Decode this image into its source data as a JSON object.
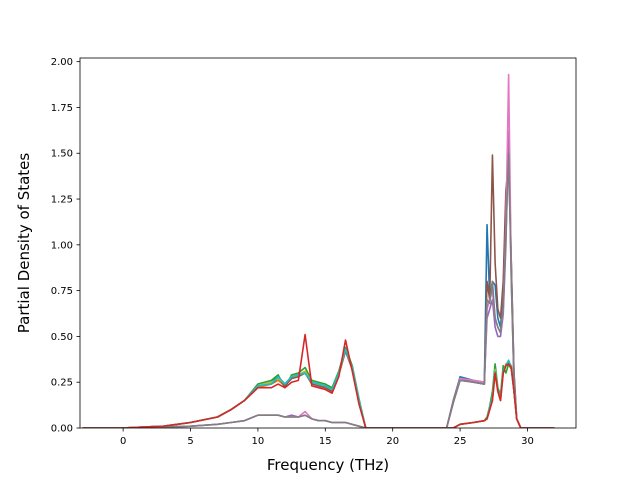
{
  "chart_data": {
    "type": "line",
    "xlabel": "Frequency (THz)",
    "ylabel": "Partial Density of States",
    "xlim": [
      -3.2,
      33.6
    ],
    "ylim": [
      0,
      2.02
    ],
    "xticks": [
      0,
      5,
      10,
      15,
      20,
      25,
      30
    ],
    "yticks": [
      0.0,
      0.25,
      0.5,
      0.75,
      1.0,
      1.25,
      1.5,
      1.75,
      2.0
    ],
    "xtick_labels": [
      "0",
      "5",
      "10",
      "15",
      "20",
      "25",
      "30"
    ],
    "ytick_labels": [
      "0.00",
      "0.25",
      "0.50",
      "0.75",
      "1.00",
      "1.25",
      "1.50",
      "1.75",
      "2.00"
    ],
    "grid": false,
    "legend": "none",
    "series": [
      {
        "color": "#1f77b4",
        "x": [
          -3,
          0,
          3,
          5,
          7,
          8,
          9,
          10,
          11,
          11.5,
          12,
          12.5,
          13,
          13.5,
          14,
          14.5,
          15,
          15.5,
          16,
          16.5,
          17,
          17.5,
          18,
          22,
          24,
          24.5,
          25,
          26,
          26.8,
          27,
          27.2,
          27.4,
          27.6,
          27.8,
          28,
          28.2,
          28.4,
          28.6,
          28.8,
          29,
          29.2,
          29.5,
          30,
          32
        ],
        "y": [
          0,
          0,
          0.01,
          0.03,
          0.06,
          0.1,
          0.15,
          0.23,
          0.25,
          0.28,
          0.24,
          0.28,
          0.29,
          0.3,
          0.25,
          0.24,
          0.23,
          0.21,
          0.3,
          0.43,
          0.33,
          0.15,
          0.0,
          0.0,
          0.0,
          0.15,
          0.28,
          0.26,
          0.25,
          1.11,
          0.7,
          0.8,
          0.78,
          0.6,
          0.55,
          0.75,
          1.2,
          1.6,
          0.9,
          0.3,
          0.05,
          0.0,
          0.0,
          0.0
        ]
      },
      {
        "color": "#ff7f0e",
        "x": [
          -3,
          0,
          3,
          5,
          7,
          8,
          9,
          10,
          11,
          11.5,
          12,
          12.5,
          13,
          13.5,
          14,
          14.5,
          15,
          15.5,
          16,
          16.5,
          17,
          17.5,
          18,
          22,
          24,
          24.5,
          25,
          26,
          26.8,
          27,
          27.2,
          27.4,
          27.6,
          27.8,
          28,
          28.2,
          28.4,
          28.6,
          28.8,
          29,
          29.2,
          29.5,
          30,
          32
        ],
        "y": [
          0,
          0,
          0.01,
          0.03,
          0.06,
          0.1,
          0.15,
          0.22,
          0.24,
          0.26,
          0.23,
          0.27,
          0.28,
          0.31,
          0.24,
          0.23,
          0.22,
          0.2,
          0.29,
          0.42,
          0.32,
          0.14,
          0.0,
          0.0,
          0.0,
          0.0,
          0.02,
          0.03,
          0.04,
          0.05,
          0.1,
          0.15,
          0.3,
          0.2,
          0.15,
          0.3,
          0.35,
          0.36,
          0.34,
          0.2,
          0.05,
          0.0,
          0.0,
          0.0
        ]
      },
      {
        "color": "#2ca02c",
        "x": [
          -3,
          0,
          3,
          5,
          7,
          8,
          9,
          10,
          11,
          11.5,
          12,
          12.5,
          13,
          13.5,
          14,
          14.5,
          15,
          15.5,
          16,
          16.5,
          17,
          17.5,
          18,
          22,
          24,
          24.5,
          25,
          26,
          26.8,
          27,
          27.2,
          27.4,
          27.6,
          27.8,
          28,
          28.2,
          28.4,
          28.6,
          28.8,
          29,
          29.2,
          29.5,
          30,
          32
        ],
        "y": [
          0,
          0,
          0.01,
          0.03,
          0.06,
          0.1,
          0.15,
          0.24,
          0.26,
          0.29,
          0.22,
          0.29,
          0.3,
          0.33,
          0.26,
          0.25,
          0.24,
          0.22,
          0.31,
          0.44,
          0.34,
          0.16,
          0.0,
          0.0,
          0.0,
          0.0,
          0.02,
          0.03,
          0.04,
          0.06,
          0.12,
          0.2,
          0.35,
          0.22,
          0.18,
          0.34,
          0.3,
          0.35,
          0.32,
          0.2,
          0.05,
          0.0,
          0.0,
          0.0
        ]
      },
      {
        "color": "#8c564b",
        "x": [
          -3,
          0,
          3,
          5,
          7,
          8,
          9,
          10,
          11,
          11.5,
          12,
          12.5,
          13,
          13.5,
          14,
          14.5,
          15,
          15.5,
          16,
          16.5,
          17,
          17.5,
          18,
          22,
          24,
          24.5,
          25,
          26,
          26.8,
          27,
          27.2,
          27.4,
          27.6,
          27.8,
          28,
          28.2,
          28.4,
          28.6,
          28.8,
          29,
          29.2,
          29.5,
          30,
          32
        ],
        "y": [
          0,
          0,
          0.01,
          0.03,
          0.06,
          0.1,
          0.15,
          0.23,
          0.24,
          0.27,
          0.23,
          0.27,
          0.28,
          0.3,
          0.24,
          0.23,
          0.22,
          0.2,
          0.29,
          0.42,
          0.32,
          0.14,
          0.0,
          0.0,
          0.0,
          0.15,
          0.27,
          0.25,
          0.24,
          0.8,
          0.7,
          1.49,
          0.9,
          0.65,
          0.6,
          0.8,
          1.3,
          1.45,
          0.9,
          0.3,
          0.05,
          0.0,
          0.0,
          0.0
        ]
      },
      {
        "color": "#9467bd",
        "x": [
          -3,
          0,
          3,
          5,
          7,
          8,
          9,
          10,
          11,
          11.5,
          12,
          12.5,
          13,
          13.5,
          14,
          14.5,
          15,
          15.5,
          16,
          16.5,
          17,
          17.5,
          18,
          22,
          24,
          24.5,
          25,
          26,
          26.8,
          27,
          27.2,
          27.4,
          27.6,
          27.8,
          28,
          28.2,
          28.4,
          28.6,
          28.8,
          29,
          29.2,
          29.5,
          30,
          32
        ],
        "y": [
          0,
          0,
          0.005,
          0.01,
          0.02,
          0.03,
          0.04,
          0.07,
          0.07,
          0.07,
          0.06,
          0.07,
          0.06,
          0.07,
          0.05,
          0.04,
          0.04,
          0.03,
          0.03,
          0.03,
          0.02,
          0.01,
          0.0,
          0.0,
          0.0,
          0.14,
          0.26,
          0.25,
          0.24,
          0.6,
          0.65,
          0.7,
          0.55,
          0.5,
          0.5,
          0.62,
          1.0,
          1.62,
          0.8,
          0.25,
          0.05,
          0.0,
          0.0,
          0.0
        ]
      },
      {
        "color": "#e377c2",
        "x": [
          -3,
          0,
          3,
          5,
          7,
          8,
          9,
          10,
          11,
          11.5,
          12,
          12.5,
          13,
          13.5,
          14,
          14.5,
          15,
          15.5,
          16,
          16.5,
          17,
          17.5,
          18,
          22,
          24,
          24.5,
          25,
          26,
          26.8,
          27,
          27.2,
          27.4,
          27.6,
          27.8,
          28,
          28.2,
          28.4,
          28.6,
          28.8,
          29,
          29.2,
          29.5,
          30,
          32
        ],
        "y": [
          0,
          0,
          0.005,
          0.01,
          0.02,
          0.03,
          0.04,
          0.07,
          0.07,
          0.07,
          0.06,
          0.06,
          0.06,
          0.09,
          0.05,
          0.04,
          0.04,
          0.03,
          0.03,
          0.03,
          0.02,
          0.01,
          0.0,
          0.0,
          0.0,
          0.14,
          0.27,
          0.26,
          0.25,
          0.65,
          0.7,
          0.75,
          0.6,
          0.55,
          0.52,
          0.65,
          1.1,
          1.93,
          0.85,
          0.25,
          0.05,
          0.0,
          0.0,
          0.0
        ]
      },
      {
        "color": "#7f7f7f",
        "x": [
          -3,
          0,
          3,
          5,
          7,
          8,
          9,
          10,
          11,
          11.5,
          12,
          12.5,
          13,
          13.5,
          14,
          14.5,
          15,
          15.5,
          16,
          16.5,
          17,
          17.5,
          18,
          22,
          24,
          24.5,
          25,
          26,
          26.8,
          27,
          27.2,
          27.4,
          27.6,
          27.8,
          28,
          28.2,
          28.4,
          28.6,
          28.8,
          29,
          29.2,
          29.5,
          30,
          32
        ],
        "y": [
          0,
          0,
          0.005,
          0.01,
          0.02,
          0.03,
          0.04,
          0.07,
          0.07,
          0.07,
          0.06,
          0.06,
          0.06,
          0.07,
          0.05,
          0.04,
          0.04,
          0.03,
          0.03,
          0.03,
          0.02,
          0.01,
          0.0,
          0.0,
          0.0,
          0.14,
          0.26,
          0.25,
          0.24,
          0.7,
          0.68,
          0.8,
          0.6,
          0.55,
          0.52,
          0.66,
          1.05,
          1.5,
          0.82,
          0.25,
          0.05,
          0.0,
          0.0,
          0.0
        ]
      },
      {
        "color": "#bcbd22",
        "x": [
          -3,
          0,
          3,
          5,
          7,
          8,
          9,
          10,
          11,
          11.5,
          12,
          12.5,
          13,
          13.5,
          14,
          14.5,
          15,
          15.5,
          16,
          16.5,
          17,
          17.5,
          18,
          22,
          24,
          24.5,
          25,
          26,
          26.8,
          27,
          27.2,
          27.4,
          27.6,
          27.8,
          28,
          28.2,
          28.4,
          28.6,
          28.8,
          29,
          29.2,
          29.5,
          30,
          32
        ],
        "y": [
          0,
          0,
          0.01,
          0.03,
          0.06,
          0.1,
          0.15,
          0.23,
          0.25,
          0.27,
          0.24,
          0.28,
          0.29,
          0.31,
          0.25,
          0.24,
          0.23,
          0.21,
          0.3,
          0.43,
          0.33,
          0.15,
          0.0,
          0.0,
          0.0,
          0.0,
          0.02,
          0.03,
          0.04,
          0.05,
          0.11,
          0.17,
          0.32,
          0.21,
          0.16,
          0.31,
          0.34,
          0.36,
          0.33,
          0.2,
          0.05,
          0.0,
          0.0,
          0.0
        ]
      },
      {
        "color": "#17becf",
        "x": [
          -3,
          0,
          3,
          5,
          7,
          8,
          9,
          10,
          11,
          11.5,
          12,
          12.5,
          13,
          13.5,
          14,
          14.5,
          15,
          15.5,
          16,
          16.5,
          17,
          17.5,
          18,
          22,
          24,
          24.5,
          25,
          26,
          26.8,
          27,
          27.2,
          27.4,
          27.6,
          27.8,
          28,
          28.2,
          28.4,
          28.6,
          28.8,
          29,
          29.2,
          29.5,
          30,
          32
        ],
        "y": [
          0,
          0,
          0.01,
          0.03,
          0.06,
          0.1,
          0.15,
          0.23,
          0.24,
          0.28,
          0.24,
          0.28,
          0.29,
          0.3,
          0.25,
          0.24,
          0.23,
          0.21,
          0.3,
          0.43,
          0.33,
          0.15,
          0.0,
          0.0,
          0.0,
          0.0,
          0.02,
          0.03,
          0.04,
          0.05,
          0.11,
          0.17,
          0.31,
          0.21,
          0.16,
          0.31,
          0.34,
          0.37,
          0.33,
          0.2,
          0.05,
          0.0,
          0.0,
          0.0
        ]
      },
      {
        "color": "#d62728",
        "x": [
          -3,
          0,
          3,
          5,
          7,
          8,
          9,
          10,
          11,
          11.5,
          12,
          12.5,
          13,
          13.5,
          14,
          14.5,
          15,
          15.5,
          16,
          16.5,
          17,
          17.5,
          18,
          22,
          24,
          24.5,
          25,
          26,
          26.8,
          27,
          27.2,
          27.4,
          27.6,
          27.8,
          28,
          28.2,
          28.4,
          28.6,
          28.8,
          29,
          29.2,
          29.5,
          30,
          32
        ],
        "y": [
          0,
          0,
          0.01,
          0.03,
          0.06,
          0.1,
          0.15,
          0.22,
          0.22,
          0.24,
          0.22,
          0.25,
          0.26,
          0.51,
          0.23,
          0.22,
          0.21,
          0.19,
          0.28,
          0.48,
          0.31,
          0.13,
          0.0,
          0.0,
          0.0,
          0.0,
          0.02,
          0.03,
          0.04,
          0.05,
          0.1,
          0.15,
          0.3,
          0.2,
          0.15,
          0.3,
          0.34,
          0.35,
          0.33,
          0.2,
          0.05,
          0.0,
          0.0,
          0.0
        ]
      }
    ]
  }
}
